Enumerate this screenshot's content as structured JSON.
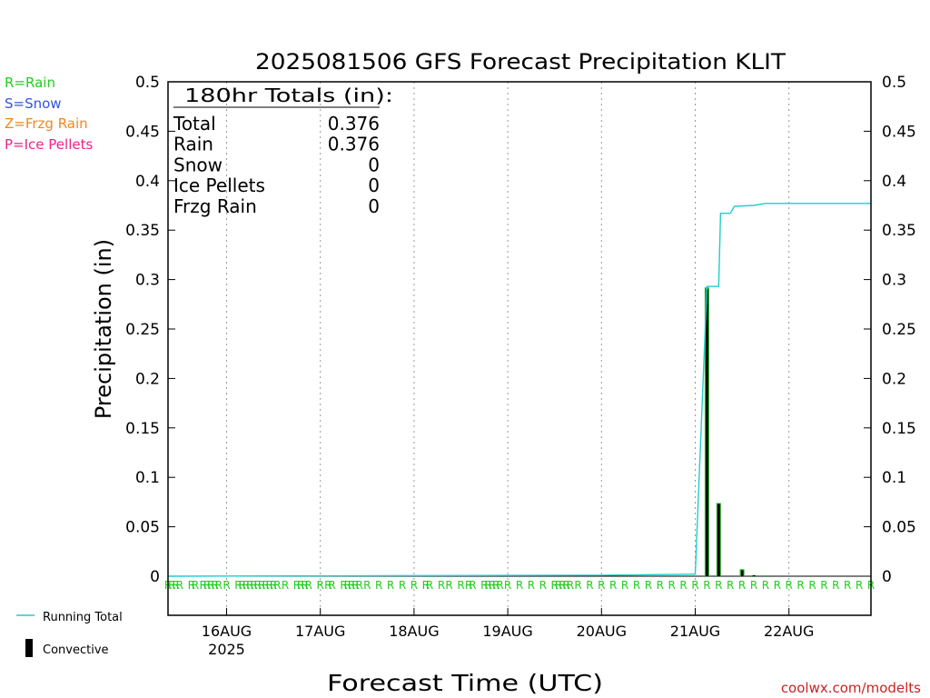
{
  "chart_data": {
    "type": "bar",
    "title": "2025081506 GFS Forecast Precipitation KLIT",
    "xlabel": "Forecast Time (UTC)",
    "ylabel": "Precipitation (in)",
    "ylim": [
      0,
      0.5
    ],
    "yticks": [
      0,
      0.05,
      0.1,
      0.15,
      0.2,
      0.25,
      0.3,
      0.35,
      0.4,
      0.45,
      0.5
    ],
    "ytick_labels": [
      "0",
      "0.05",
      "0.1",
      "0.15",
      "0.2",
      "0.25",
      "0.3",
      "0.35",
      "0.4",
      "0.45",
      "0.5"
    ],
    "x_unit": "hours since 2025-08-15 06Z",
    "xlim": [
      3,
      183
    ],
    "xticks": [
      {
        "label": "16AUG",
        "year": "2025",
        "hour": 18
      },
      {
        "label": "17AUG",
        "year": "",
        "hour": 42
      },
      {
        "label": "18AUG",
        "year": "",
        "hour": 66
      },
      {
        "label": "19AUG",
        "year": "",
        "hour": 90
      },
      {
        "label": "20AUG",
        "year": "",
        "hour": 114
      },
      {
        "label": "21AUG",
        "year": "",
        "hour": 138
      },
      {
        "label": "22AUG",
        "year": "",
        "hour": 162
      }
    ],
    "grid": "vertical dotted",
    "legend": {
      "position": "left",
      "precip_types": [
        {
          "label": "R=Rain",
          "color": "#22cc22"
        },
        {
          "label": "S=Snow",
          "color": "#3355dd"
        },
        {
          "label": "Z=Frzg Rain",
          "color": "#ee8822"
        },
        {
          "label": "P=Ice Pellets",
          "color": "#ee2288"
        }
      ],
      "running_total_label": "Running Total",
      "convective_label": "Convective"
    },
    "totals_box": {
      "header": "180hr Totals (in):",
      "rows": [
        {
          "label": "Total",
          "value": "0.376"
        },
        {
          "label": "Rain",
          "value": "0.376"
        },
        {
          "label": "Snow",
          "value": "0"
        },
        {
          "label": "Ice Pellets",
          "value": "0"
        },
        {
          "label": "Frzg Rain",
          "value": "0"
        }
      ]
    },
    "series": [
      {
        "name": "Precipitation (Rain)",
        "style": "bar",
        "color": "#22aa22",
        "hours": [
          141,
          144,
          150,
          153
        ],
        "values": [
          0.292,
          0.074,
          0.007,
          0.001
        ]
      },
      {
        "name": "Convective",
        "style": "bar",
        "color": "#000000",
        "hours": [
          141,
          144,
          150,
          153
        ],
        "values": [
          0.29,
          0.073,
          0.006,
          0.001
        ]
      },
      {
        "name": "Running Total",
        "style": "step-line",
        "color": "#22cccc",
        "points": [
          [
            3,
            0
          ],
          [
            114,
            0.001
          ],
          [
            138,
            0.002
          ],
          [
            141,
            0.293
          ],
          [
            144,
            0.293
          ],
          [
            144.5,
            0.367
          ],
          [
            147,
            0.367
          ],
          [
            148,
            0.374
          ],
          [
            153,
            0.375
          ],
          [
            156,
            0.377
          ],
          [
            183,
            0.377
          ]
        ]
      }
    ],
    "ptype_markers": {
      "symbol": "R",
      "hours": [
        3,
        4,
        5,
        6,
        9,
        10,
        12,
        13,
        14,
        15,
        16,
        18,
        21,
        22,
        23,
        24,
        25,
        26,
        27,
        28,
        29,
        30,
        31,
        33,
        36,
        37,
        38,
        39,
        42,
        44,
        45,
        48,
        49,
        50,
        51,
        52,
        54,
        57,
        60,
        63,
        66,
        69,
        70,
        73,
        75,
        78,
        80,
        81,
        84,
        85,
        86,
        87,
        88,
        90,
        93,
        96,
        99,
        102,
        103,
        104,
        105,
        106,
        108,
        111,
        114,
        117,
        120,
        123,
        126,
        129,
        132,
        135,
        138,
        141,
        144,
        147,
        150,
        153,
        156,
        159,
        162,
        165,
        168,
        171,
        174,
        177,
        180,
        183
      ]
    },
    "credit": "coolwx.com/modelts"
  }
}
